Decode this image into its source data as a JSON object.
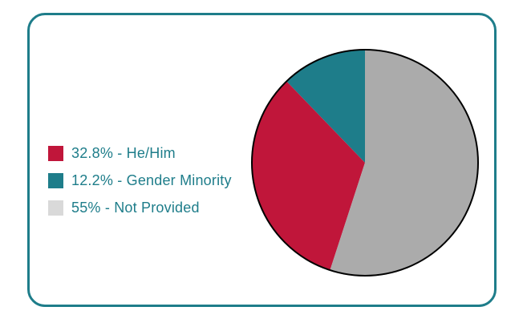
{
  "chart_data": {
    "type": "pie",
    "series": [
      {
        "name": "He/Him",
        "value": 32.8,
        "color": "#c0163a",
        "legend": "32.8% - He/Him"
      },
      {
        "name": "Gender Minority",
        "value": 12.2,
        "color": "#1e7d8a",
        "legend": "12.2% - Gender Minority"
      },
      {
        "name": "Not Provided",
        "value": 55,
        "color": "#ababab",
        "legend": "55% - Not Provided"
      }
    ],
    "legend_position": "left"
  },
  "colors": {
    "border": "#1e7d8a",
    "text": "#1e7d8a",
    "pie_outline": "#000000"
  }
}
